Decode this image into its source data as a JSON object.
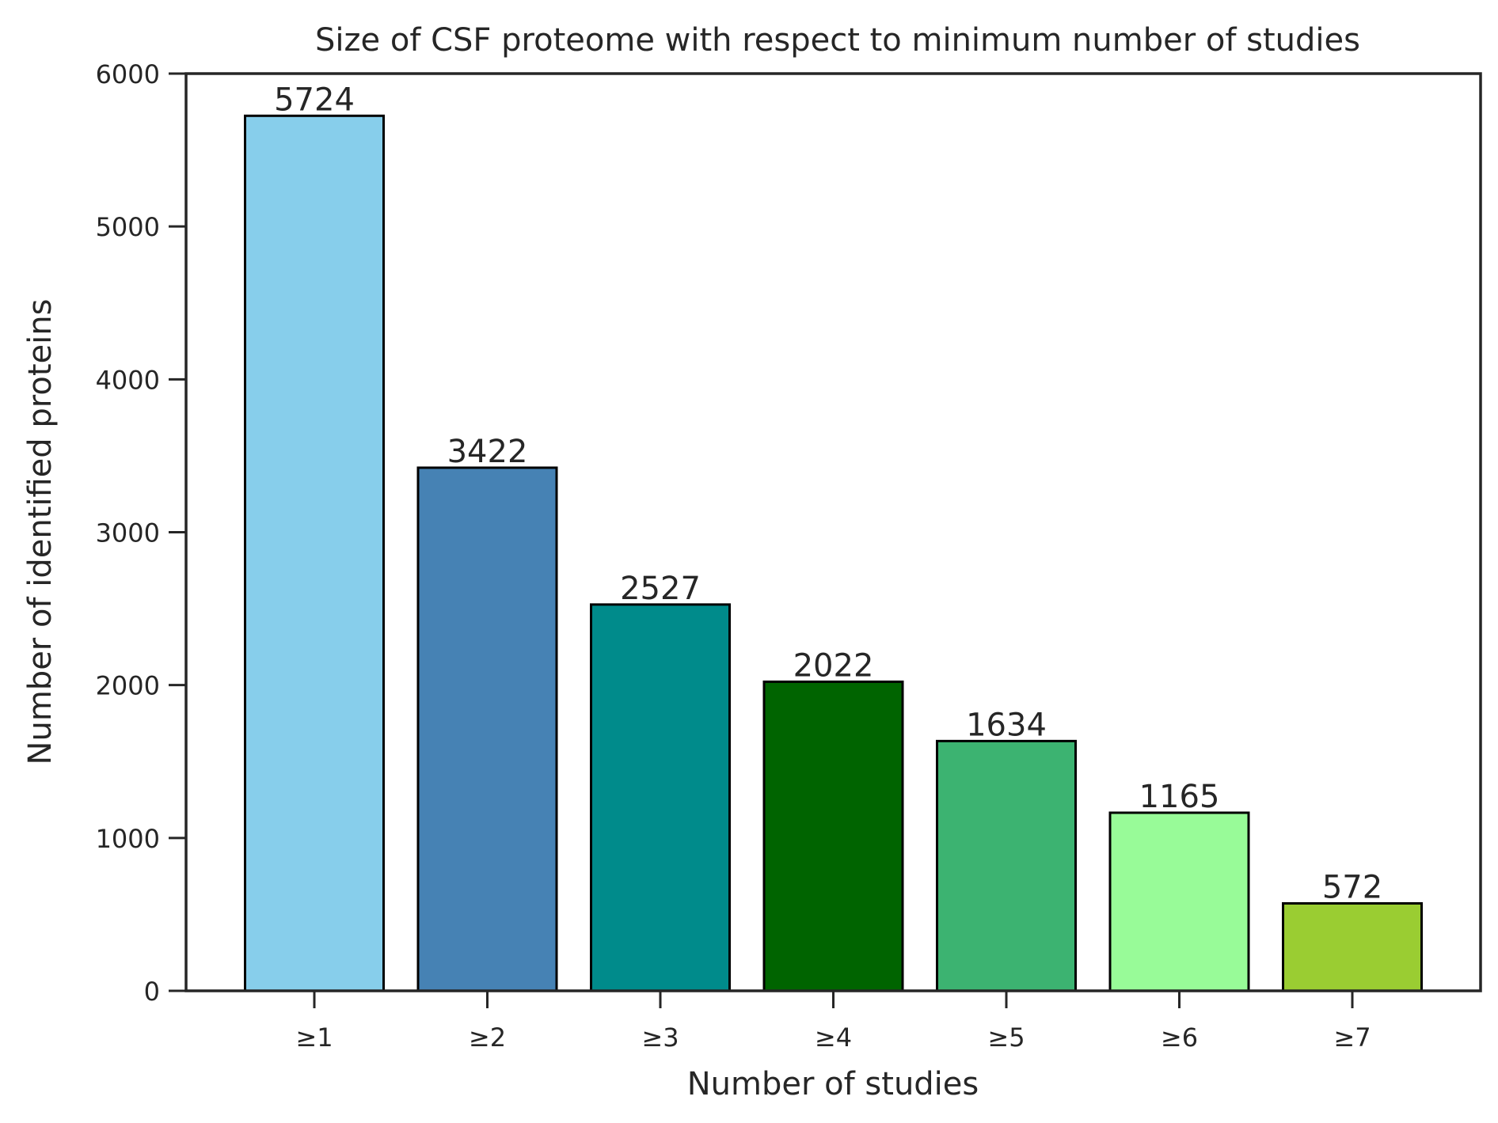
{
  "chart_data": {
    "type": "bar",
    "title": "Size of CSF proteome with respect to minimum number of studies",
    "xlabel": "Number of studies",
    "ylabel": "Number of identified proteins",
    "categories": [
      "≥1",
      "≥2",
      "≥3",
      "≥4",
      "≥5",
      "≥6",
      "≥7"
    ],
    "values": [
      5724,
      3422,
      2527,
      2022,
      1634,
      1165,
      572
    ],
    "data_labels": [
      "5724",
      "3422",
      "2527",
      "2022",
      "1634",
      "1165",
      "572"
    ],
    "colors": [
      "#87ceeb",
      "#4682b4",
      "#008b8b",
      "#006400",
      "#3cb371",
      "#98fb98",
      "#9acd32"
    ],
    "ylim": [
      0,
      6000
    ],
    "yticks": [
      0,
      1000,
      2000,
      3000,
      4000,
      5000,
      6000
    ],
    "ytick_labels": [
      "0",
      "1000",
      "2000",
      "3000",
      "4000",
      "5000",
      "6000"
    ],
    "grid": false,
    "legend": "none"
  }
}
